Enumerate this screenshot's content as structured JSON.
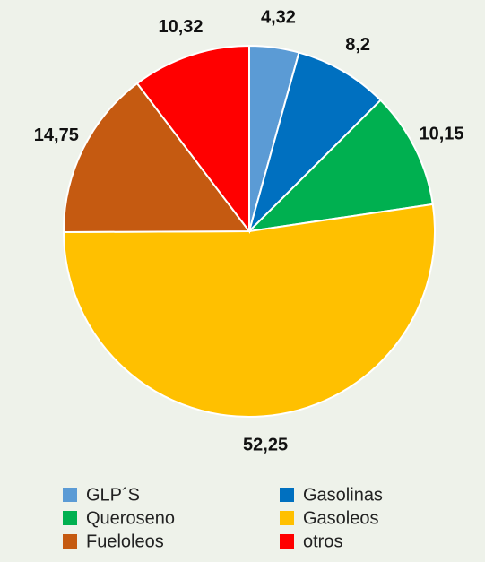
{
  "chart_data": {
    "type": "pie",
    "categories": [
      "GLP´S",
      "Gasolinas",
      "Queroseno",
      "Gasoleos",
      "Fueloleos",
      "otros"
    ],
    "values": [
      4.32,
      8.2,
      10.15,
      52.25,
      14.75,
      10.32
    ],
    "value_labels": [
      "4,32",
      "8,2",
      "10,15",
      "52,25",
      "14,75",
      "10,32"
    ],
    "colors": [
      "#5b9bd5",
      "#0070c0",
      "#00b050",
      "#ffc000",
      "#c55a11",
      "#ff0000"
    ],
    "legend": "bottom"
  }
}
